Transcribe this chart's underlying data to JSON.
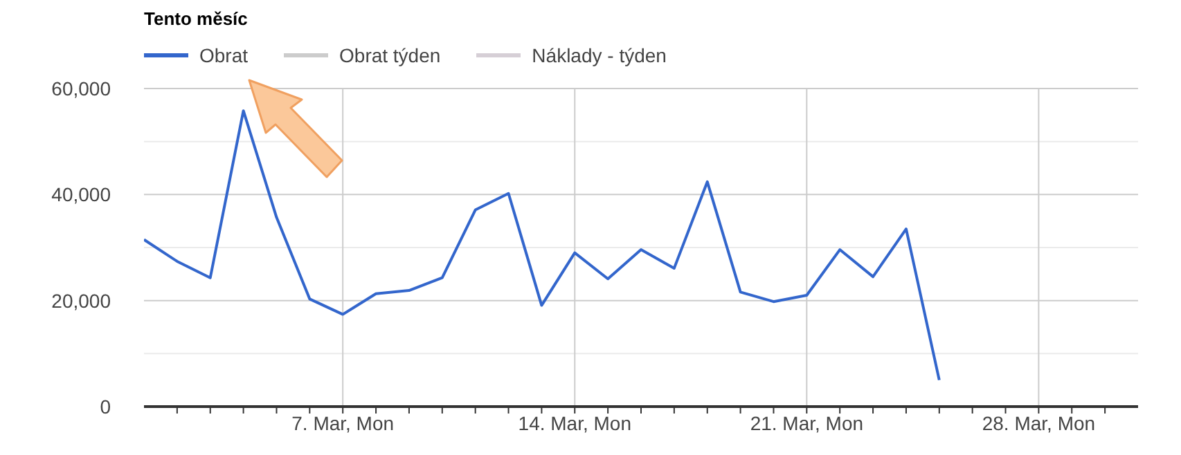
{
  "chart_data": {
    "type": "line",
    "title": "Tento měsíc",
    "legend": "top left",
    "grid": true,
    "marker": "none",
    "x": [
      "--03-01",
      "--03-02",
      "--03-03",
      "--03-04",
      "--03-05",
      "--03-06",
      "--03-07",
      "--03-08",
      "--03-09",
      "--03-10",
      "--03-11",
      "--03-12",
      "--03-13",
      "--03-14",
      "--03-15",
      "--03-16",
      "--03-17",
      "--03-18",
      "--03-19",
      "--03-20",
      "--03-21",
      "--03-22",
      "--03-23",
      "--03-24",
      "--03-25"
    ],
    "series": [
      {
        "name": "Obrat",
        "color": "#3366cc",
        "values": [
          31500,
          27400,
          24300,
          55800,
          35700,
          20300,
          17400,
          21300,
          21900,
          24300,
          37100,
          40200,
          19100,
          29000,
          24100,
          29600,
          26100,
          42400,
          21600,
          19800,
          21000,
          29600,
          24500,
          33500,
          5000
        ]
      },
      {
        "name": "Obrat týden",
        "color": "#cccccc",
        "values": [
          null,
          null,
          null,
          null,
          null,
          null,
          null,
          null,
          null,
          null,
          null,
          null,
          null,
          null,
          null,
          null,
          null,
          null,
          null,
          null,
          null,
          null,
          null,
          null,
          null
        ]
      },
      {
        "name": "Náklady - týden",
        "color": "#d6cfd6",
        "values": [
          null,
          null,
          null,
          null,
          null,
          null,
          null,
          null,
          null,
          null,
          null,
          null,
          null,
          null,
          null,
          null,
          null,
          null,
          null,
          null,
          null,
          null,
          null,
          null,
          null
        ]
      }
    ],
    "xlim": [
      "--03-01",
      "--03-31"
    ],
    "xticks": [
      {
        "value": "--03-02",
        "label": null
      },
      {
        "value": "--03-03",
        "label": null
      },
      {
        "value": "--03-04",
        "label": null
      },
      {
        "value": "--03-05",
        "label": null
      },
      {
        "value": "--03-06",
        "label": null
      },
      {
        "value": "--03-07",
        "label": "7. Mar, Mon"
      },
      {
        "value": "--03-08",
        "label": null
      },
      {
        "value": "--03-09",
        "label": null
      },
      {
        "value": "--03-10",
        "label": null
      },
      {
        "value": "--03-11",
        "label": null
      },
      {
        "value": "--03-12",
        "label": null
      },
      {
        "value": "--03-13",
        "label": null
      },
      {
        "value": "--03-14",
        "label": "14. Mar, Mon"
      },
      {
        "value": "--03-15",
        "label": null
      },
      {
        "value": "--03-16",
        "label": null
      },
      {
        "value": "--03-17",
        "label": null
      },
      {
        "value": "--03-18",
        "label": null
      },
      {
        "value": "--03-19",
        "label": null
      },
      {
        "value": "--03-20",
        "label": null
      },
      {
        "value": "--03-21",
        "label": "21. Mar, Mon"
      },
      {
        "value": "--03-22",
        "label": null
      },
      {
        "value": "--03-23",
        "label": null
      },
      {
        "value": "--03-24",
        "label": null
      },
      {
        "value": "--03-25",
        "label": null
      },
      {
        "value": "--03-26",
        "label": null
      },
      {
        "value": "--03-27",
        "label": null
      },
      {
        "value": "--03-28",
        "label": "28. Mar, Mon"
      },
      {
        "value": "--03-29",
        "label": null
      },
      {
        "value": "--03-30",
        "label": null
      }
    ],
    "ylim": [
      0,
      60000
    ],
    "yticks": [
      {
        "value": 0,
        "label": "0"
      },
      {
        "value": 10000,
        "label": null
      },
      {
        "value": 20000,
        "label": "20,000"
      },
      {
        "value": 30000,
        "label": null
      },
      {
        "value": 40000,
        "label": "40,000"
      },
      {
        "value": 50000,
        "label": null
      },
      {
        "value": 60000,
        "label": "60,000"
      }
    ]
  }
}
